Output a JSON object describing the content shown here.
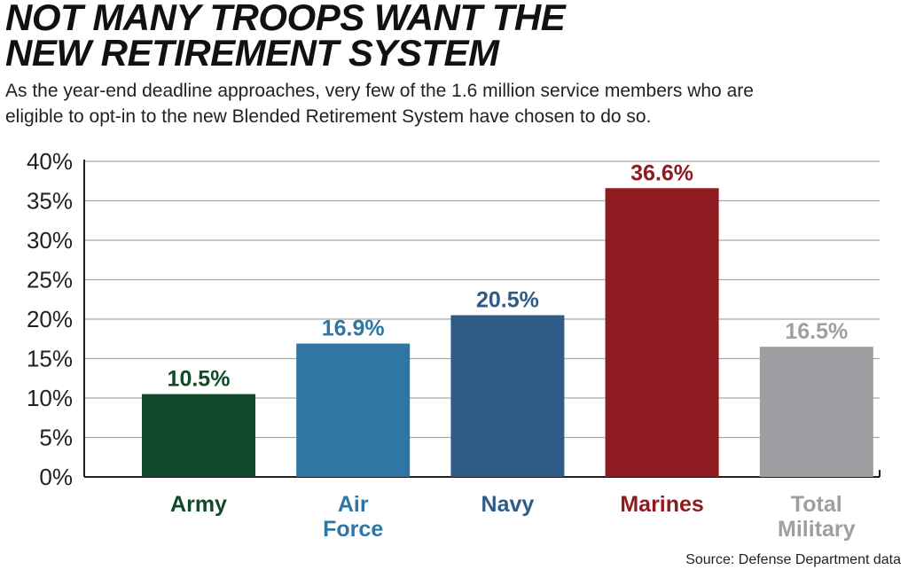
{
  "header": {
    "title_line1": "NOT MANY TROOPS WANT THE",
    "title_line2": "NEW RETIREMENT SYSTEM",
    "subtitle_line1": "As the year-end deadline approaches, very few of the 1.6 million service members who are",
    "subtitle_line2": "eligible to opt-in to the new Blended Retirement System have chosen to do so."
  },
  "footer": {
    "source": "Source: Defense Department data"
  },
  "chart_data": {
    "type": "bar",
    "title": "NOT MANY TROOPS WANT THE NEW RETIREMENT SYSTEM",
    "categories": [
      "Army",
      "Air Force",
      "Navy",
      "Marines",
      "Total Military"
    ],
    "category_lines": [
      [
        "Army"
      ],
      [
        "Air",
        "Force"
      ],
      [
        "Navy"
      ],
      [
        "Marines"
      ],
      [
        "Total",
        "Military"
      ]
    ],
    "values": [
      10.5,
      16.9,
      20.5,
      36.6,
      16.5
    ],
    "value_labels": [
      "10.5%",
      "16.9%",
      "20.5%",
      "36.6%",
      "16.5%"
    ],
    "colors": [
      "#0f4a2a",
      "#2e77a5",
      "#2f5b87",
      "#8e1b20",
      "#9d9fa2"
    ],
    "label_colors": [
      "#0f4a2a",
      "#2e77a5",
      "#2f5b87",
      "#8e1b20",
      "#9d9fa2"
    ],
    "ylim": [
      0,
      40
    ],
    "yticks": [
      0,
      5,
      10,
      15,
      20,
      25,
      30,
      35,
      40
    ],
    "ytick_labels": [
      "0%",
      "5%",
      "10%",
      "15%",
      "20%",
      "25%",
      "30%",
      "35%",
      "40%"
    ],
    "xlabel": "",
    "ylabel": "",
    "grid": true,
    "legend": "none"
  }
}
